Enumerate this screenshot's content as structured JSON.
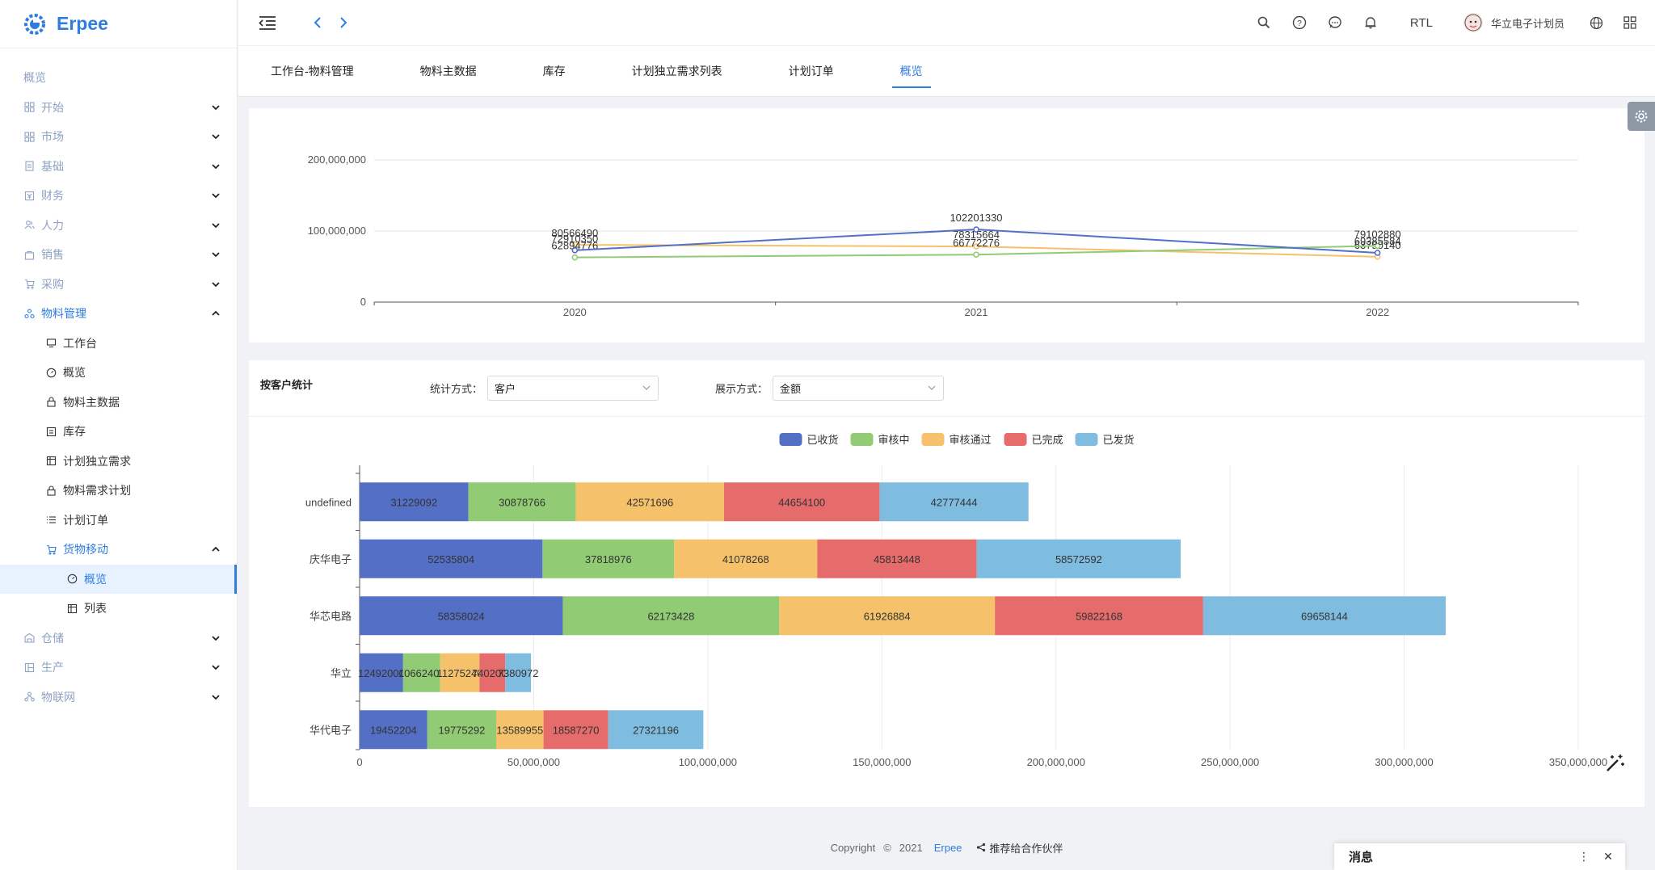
{
  "app": {
    "name": "Erpee"
  },
  "colors": {
    "accent": "#2f7ddf"
  },
  "sidebar": {
    "root_title": "概览",
    "groups": [
      {
        "label": "开始",
        "icon": "grid-icon"
      },
      {
        "label": "市场",
        "icon": "grid-icon"
      },
      {
        "label": "基础",
        "icon": "document-icon"
      },
      {
        "label": "财务",
        "icon": "finance-icon"
      },
      {
        "label": "人力",
        "icon": "people-icon"
      },
      {
        "label": "销售",
        "icon": "bag-icon"
      },
      {
        "label": "采购",
        "icon": "cart-icon"
      }
    ],
    "material": {
      "label": "物料管理",
      "items": [
        {
          "label": "工作台",
          "icon": "monitor-icon"
        },
        {
          "label": "概览",
          "icon": "dashboard-icon"
        },
        {
          "label": "物料主数据",
          "icon": "lock-icon"
        },
        {
          "label": "库存",
          "icon": "list-box-icon"
        },
        {
          "label": "计划独立需求",
          "icon": "calendar-icon"
        },
        {
          "label": "物料需求计划",
          "icon": "lock-icon"
        },
        {
          "label": "计划订单",
          "icon": "list-icon"
        }
      ],
      "goods": {
        "label": "货物移动",
        "items": [
          {
            "label": "概览",
            "icon": "dashboard-icon"
          },
          {
            "label": "列表",
            "icon": "calendar-icon"
          }
        ]
      }
    },
    "tail_groups": [
      {
        "label": "仓储",
        "icon": "warehouse-icon"
      },
      {
        "label": "生产",
        "icon": "factory-icon"
      },
      {
        "label": "物联网",
        "icon": "network-icon"
      }
    ]
  },
  "topbar": {
    "rtl": "RTL",
    "user": "华立电子计划员"
  },
  "tabs": [
    "工作台-物料管理",
    "物料主数据",
    "库存",
    "计划独立需求列表",
    "计划订单",
    "概览"
  ],
  "active_tab": 5,
  "line_chart_data": {
    "type": "line",
    "x": [
      "2020",
      "2021",
      "2022"
    ],
    "ylim": [
      0,
      200000000
    ],
    "yticks": [
      "0",
      "100,000,000",
      "200,000,000"
    ],
    "series": [
      {
        "color": "#f5c26b",
        "values": [
          80566490,
          78315664,
          63790140
        ],
        "labels": [
          "80566490",
          "78315664",
          "63790140"
        ]
      },
      {
        "color": "#91cc75",
        "values": [
          62894776,
          66772276,
          79102880
        ],
        "labels": [
          "62894776",
          "66772276",
          "79102880"
        ]
      },
      {
        "color": "#5470c6",
        "values": [
          72910350,
          102201330,
          69385584
        ],
        "labels": [
          "72910350",
          "102201330",
          "69385584"
        ]
      }
    ]
  },
  "customer_stats": {
    "title": "按客户统计",
    "filter1_label": "统计方式：",
    "filter1_value": "客户",
    "filter2_label": "展示方式：",
    "filter2_value": "金额"
  },
  "chart_data": {
    "type": "bar",
    "orientation": "horizontal-stacked",
    "categories": [
      "undefined",
      "庆华电子",
      "华芯电路",
      "华立",
      "华代电子"
    ],
    "xlim": [
      0,
      350000000
    ],
    "xticks": [
      "0",
      "50,000,000",
      "100,000,000",
      "150,000,000",
      "200,000,000",
      "250,000,000",
      "300,000,000",
      "350,000,000"
    ],
    "legend_position": "top-center",
    "series": [
      {
        "name": "已收货",
        "color": "#5470c6",
        "values": [
          31229092,
          52535804,
          58358024,
          12492000,
          19452204
        ]
      },
      {
        "name": "审核中",
        "color": "#91cc75",
        "values": [
          30878766,
          37818976,
          62173428,
          10662408,
          19775292
        ]
      },
      {
        "name": "审核通过",
        "color": "#f5c26b",
        "values": [
          42571696,
          41078268,
          61926884,
          11275240,
          13589955
        ]
      },
      {
        "name": "已完成",
        "color": "#e66b6b",
        "values": [
          44654100,
          45813448,
          59822168,
          7402000,
          18587270
        ]
      },
      {
        "name": "已发货",
        "color": "#7fbde0",
        "values": [
          42777444,
          58572592,
          69658144,
          7380972,
          27321196
        ]
      }
    ],
    "labels": [
      [
        "31229092",
        "30878766",
        "42571696",
        "44654100",
        "42777444"
      ],
      [
        "52535804",
        "37818976",
        "41078268",
        "45813448",
        "58572592"
      ],
      [
        "58358024",
        "62173428",
        "61926884",
        "59822168",
        "69658144"
      ],
      [
        "12492000",
        "10662408",
        "11275240",
        "7402000",
        "7380972"
      ],
      [
        "19452204",
        "19775292",
        "13589955",
        "18587270",
        "27321196"
      ]
    ]
  },
  "footer": {
    "copyright": "Copyright",
    "symbol": "©",
    "year": "2021",
    "brand": "Erpee",
    "partner": "推荐给合作伙伴"
  },
  "message_panel": {
    "title": "消息"
  }
}
